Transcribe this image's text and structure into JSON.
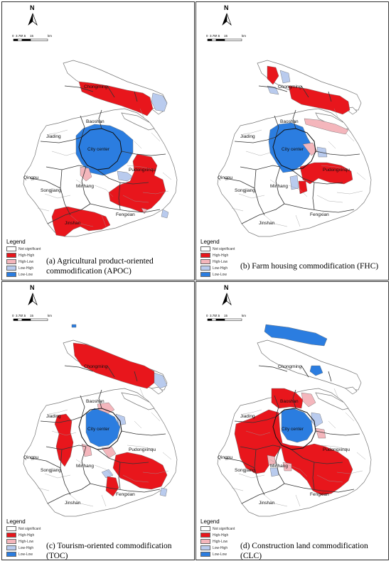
{
  "panels": [
    {
      "caption": "(a) Agricultural product-oriented commodification (APOC)",
      "legend": {
        "title": "Legend",
        "items": [
          {
            "label": "Not significant",
            "color": "#ffffff"
          },
          {
            "label": "High-High",
            "color": "#e8161c"
          },
          {
            "label": "High-Low",
            "color": "#f4b6bc"
          },
          {
            "label": "Low-High",
            "color": "#b9cbee"
          },
          {
            "label": "Low-Low",
            "color": "#2b7de0"
          }
        ]
      },
      "places": [
        "Chongming",
        "Baoshan",
        "Jiading",
        "City center",
        "Qingpu",
        "Songjiang",
        "Minhang",
        "Pudongxinqu",
        "Fengxian",
        "Jinshan"
      ],
      "north": "N",
      "scale": [
        "0",
        "3.75",
        "7.5",
        "15",
        "km"
      ]
    },
    {
      "caption": "(b) Farm housing commodification (FHC)",
      "legend": {
        "title": "Legend",
        "items": [
          {
            "label": "Not significant",
            "color": "#ffffff"
          },
          {
            "label": "High-High",
            "color": "#e8161c"
          },
          {
            "label": "High-Low",
            "color": "#f4b6bc"
          },
          {
            "label": "Low-High",
            "color": "#b9cbee"
          },
          {
            "label": "Low-Low",
            "color": "#2b7de0"
          }
        ]
      },
      "places": [
        "Chongming",
        "Baoshan",
        "Jiading",
        "City center",
        "Qingpu",
        "Songjiang",
        "Minhang",
        "Pudongxinqu",
        "Fengxian",
        "Jinshan"
      ],
      "north": "N",
      "scale": [
        "0",
        "3.75",
        "7.5",
        "15",
        "km"
      ]
    },
    {
      "caption": "(c) Tourism-oriented commodification (TOC)",
      "legend": {
        "title": "Legend",
        "items": [
          {
            "label": "Not significant",
            "color": "#ffffff"
          },
          {
            "label": "High-High",
            "color": "#e8161c"
          },
          {
            "label": "High-Low",
            "color": "#f4b6bc"
          },
          {
            "label": "Low-High",
            "color": "#b9cbee"
          },
          {
            "label": "Low-Low",
            "color": "#2b7de0"
          }
        ]
      },
      "places": [
        "Chongming",
        "Baoshan",
        "Jiading",
        "City center",
        "Qingpu",
        "Songjiang",
        "Minhang",
        "Pudongxinqu",
        "Fengxian",
        "Jinshan"
      ],
      "north": "N",
      "scale": [
        "0",
        "3.75",
        "7.5",
        "15",
        "km"
      ]
    },
    {
      "caption": "(d) Construction land commodification (CLC)",
      "legend": {
        "title": "Legend",
        "items": [
          {
            "label": "Not significant",
            "color": "#ffffff"
          },
          {
            "label": "High-High",
            "color": "#e8161c"
          },
          {
            "label": "High-Low",
            "color": "#f4b6bc"
          },
          {
            "label": "Low-High",
            "color": "#b9cbee"
          },
          {
            "label": "Low-Low",
            "color": "#2b7de0"
          }
        ]
      },
      "places": [
        "Chongming",
        "Baoshan",
        "Jiading",
        "City center",
        "Qingpu",
        "Songjiang",
        "Minhang",
        "Pudongxinqu",
        "Fengxian",
        "Jinshan"
      ],
      "north": "N",
      "scale": [
        "0",
        "3.75",
        "7.5",
        "15",
        "km"
      ]
    }
  ]
}
